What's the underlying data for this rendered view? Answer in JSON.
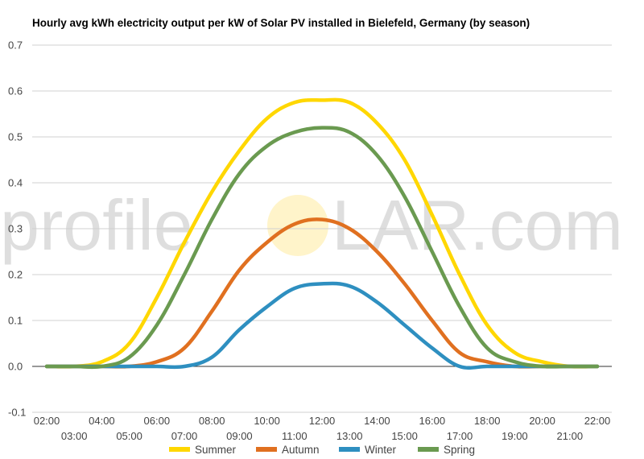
{
  "chart_data": {
    "type": "line",
    "title": "Hourly avg kWh electricity output per kW of Solar PV installed in Bielefeld, Germany (by season)",
    "xlabel": "",
    "ylabel": "",
    "ylim": [
      -0.1,
      0.7
    ],
    "yticks": [
      "-0.1",
      "0.0",
      "0.1",
      "0.2",
      "0.3",
      "0.4",
      "0.5",
      "0.6",
      "0.7"
    ],
    "grid": true,
    "legend": "bottom",
    "x": [
      "02:00",
      "03:00",
      "04:00",
      "05:00",
      "06:00",
      "07:00",
      "08:00",
      "09:00",
      "10:00",
      "11:00",
      "12:00",
      "13:00",
      "14:00",
      "15:00",
      "16:00",
      "17:00",
      "18:00",
      "19:00",
      "20:00",
      "21:00",
      "22:00"
    ],
    "series": [
      {
        "name": "Summer",
        "color": "#FFD700",
        "values": [
          0.0,
          0.0,
          0.01,
          0.05,
          0.15,
          0.27,
          0.38,
          0.47,
          0.54,
          0.575,
          0.58,
          0.575,
          0.53,
          0.45,
          0.33,
          0.2,
          0.09,
          0.03,
          0.01,
          0.0,
          0.0
        ]
      },
      {
        "name": "Autumn",
        "color": "#E07020",
        "values": [
          0.0,
          0.0,
          0.0,
          0.0,
          0.01,
          0.04,
          0.12,
          0.21,
          0.27,
          0.31,
          0.32,
          0.3,
          0.25,
          0.18,
          0.1,
          0.03,
          0.01,
          0.0,
          0.0,
          0.0,
          0.0
        ]
      },
      {
        "name": "Winter",
        "color": "#2E8FC0",
        "values": [
          0.0,
          0.0,
          0.0,
          0.0,
          0.0,
          0.0,
          0.02,
          0.08,
          0.13,
          0.17,
          0.18,
          0.175,
          0.14,
          0.09,
          0.04,
          0.0,
          0.0,
          0.0,
          0.0,
          0.0,
          0.0
        ]
      },
      {
        "name": "Spring",
        "color": "#6A9A50",
        "values": [
          0.0,
          0.0,
          0.0,
          0.02,
          0.09,
          0.2,
          0.32,
          0.42,
          0.48,
          0.51,
          0.52,
          0.51,
          0.46,
          0.37,
          0.25,
          0.13,
          0.04,
          0.01,
          0.0,
          0.0,
          0.0
        ]
      }
    ]
  },
  "watermark": {
    "left": "profile",
    "right": "LAR.com",
    "sun_color": "#FFF3C4"
  }
}
